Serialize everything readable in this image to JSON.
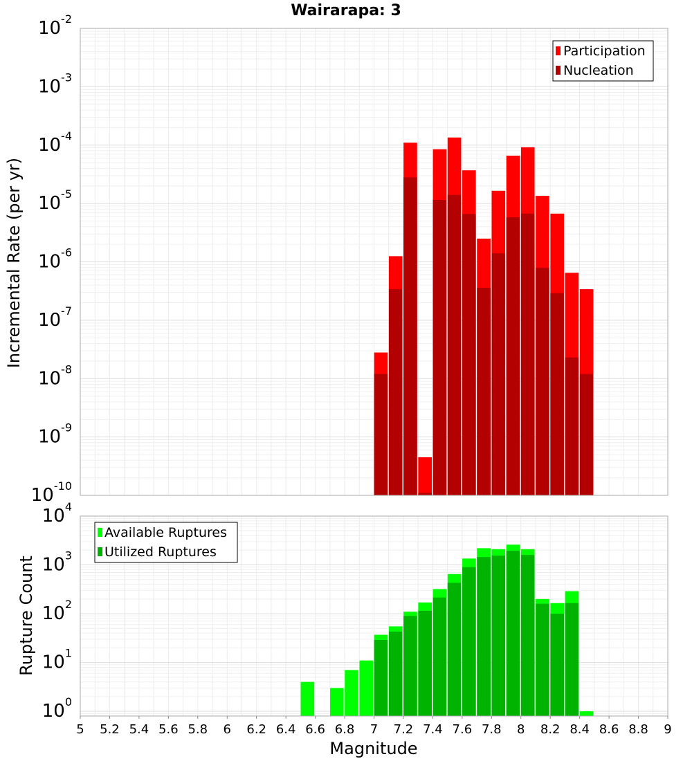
{
  "chart_data": [
    {
      "type": "bar",
      "title": "Wairarapa: 3",
      "ylabel": "Incremental Rate (per yr)",
      "xlabel": "",
      "x_range": [
        5,
        9
      ],
      "ylim": [
        1e-10,
        0.01
      ],
      "y_scale": "log",
      "grid": true,
      "legend_position": "top-right",
      "y_tick_labels": [
        {
          "base": "10",
          "exp": "-2"
        },
        {
          "base": "10",
          "exp": "-3"
        },
        {
          "base": "10",
          "exp": "-4"
        },
        {
          "base": "10",
          "exp": "-5"
        },
        {
          "base": "10",
          "exp": "-6"
        },
        {
          "base": "10",
          "exp": "-7"
        },
        {
          "base": "10",
          "exp": "-8"
        },
        {
          "base": "10",
          "exp": "-9"
        },
        {
          "base": "10",
          "exp": "-10"
        }
      ],
      "x": [
        7.0,
        7.1,
        7.2,
        7.3,
        7.4,
        7.5,
        7.6,
        7.7,
        7.8,
        7.9,
        8.0,
        8.1,
        8.2,
        8.3,
        8.4
      ],
      "series": [
        {
          "name": "Participation",
          "color": "#ff0000",
          "values": [
            2.8e-08,
            1.25e-06,
            0.00011,
            4.5e-10,
            8.5e-05,
            0.000135,
            3.7e-05,
            2.5e-06,
            1.65e-05,
            6.6e-05,
            9.2e-05,
            1.35e-05,
            6.7e-06,
            6.5e-07,
            3.4e-07
          ]
        },
        {
          "name": "Nucleation",
          "color": "#b30000",
          "values": [
            1.2e-08,
            3.4e-07,
            2.8e-05,
            1.1e-10,
            1.15e-05,
            1.4e-05,
            6.6e-06,
            3.6e-07,
            1.4e-06,
            5.8e-06,
            6.7e-06,
            7.9e-07,
            2.9e-07,
            2.3e-08,
            1.2e-08
          ]
        }
      ]
    },
    {
      "type": "bar",
      "title": "",
      "ylabel": "Rupture Count",
      "xlabel": "Magnitude",
      "x_range": [
        5,
        9
      ],
      "ylim": [
        0.8,
        10000
      ],
      "y_scale": "log",
      "grid": true,
      "legend_position": "top-left",
      "y_tick_labels": [
        {
          "base": "10",
          "exp": "4"
        },
        {
          "base": "10",
          "exp": "3"
        },
        {
          "base": "10",
          "exp": "2"
        },
        {
          "base": "10",
          "exp": "1"
        },
        {
          "base": "10",
          "exp": "0"
        }
      ],
      "x_tick_labels": [
        "5",
        "5.2",
        "5.4",
        "5.6",
        "5.8",
        "6",
        "6.2",
        "6.4",
        "6.6",
        "6.8",
        "7",
        "7.2",
        "7.4",
        "7.6",
        "7.8",
        "8",
        "8.2",
        "8.4",
        "8.6",
        "8.8",
        "9"
      ],
      "x": [
        6.5,
        6.6,
        6.7,
        6.8,
        6.9,
        7.0,
        7.1,
        7.2,
        7.3,
        7.4,
        7.5,
        7.6,
        7.7,
        7.8,
        7.9,
        8.0,
        8.1,
        8.2,
        8.3,
        8.4
      ],
      "series": [
        {
          "name": "Available Ruptures",
          "color": "#00ff00",
          "values": [
            4,
            0,
            3,
            7,
            11,
            37,
            55,
            110,
            170,
            320,
            650,
            1350,
            2200,
            2100,
            2600,
            2100,
            200,
            165,
            290,
            1
          ]
        },
        {
          "name": "Utilized Ruptures",
          "color": "#00b300",
          "values": [
            0,
            0,
            0,
            0,
            0,
            29,
            43,
            90,
            115,
            215,
            430,
            900,
            1450,
            1550,
            1950,
            1600,
            160,
            100,
            165,
            0
          ]
        }
      ]
    }
  ]
}
